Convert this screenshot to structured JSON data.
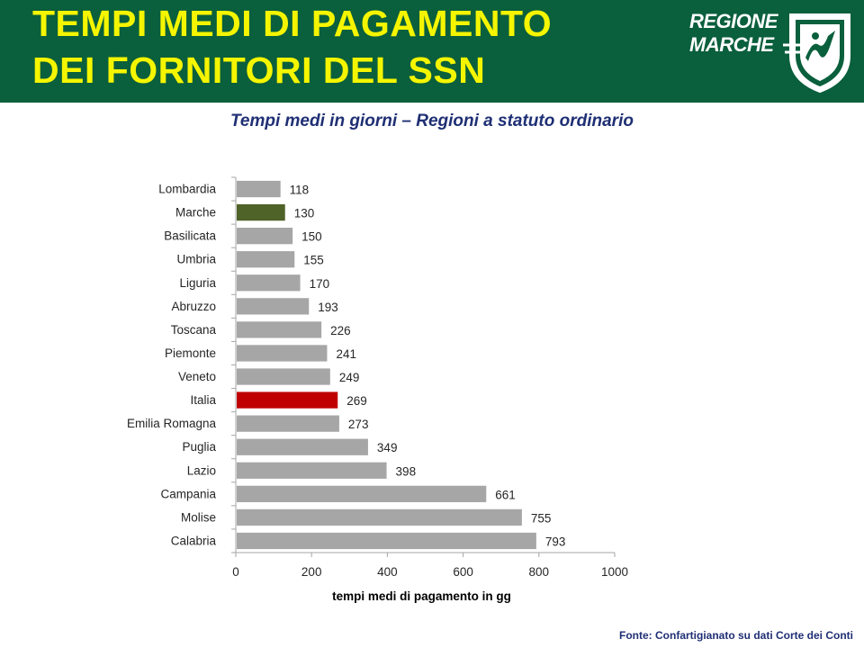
{
  "header": {
    "title_line1": "TEMPI MEDI DI PAGAMENTO",
    "title_line2": "DEI FORNITORI DEL SSN",
    "logo_line1": "REGIONE",
    "logo_line2": "MARCHE"
  },
  "subtitle": "Tempi medi in giorni – Regioni a statuto ordinario",
  "source": "Fonte: Confartigianato su dati Corte dei Conti",
  "colors": {
    "header_bg": "#0a5f3c",
    "title": "#f5f500",
    "default_bar": "#a6a6a6",
    "marche_bar": "#4f6228",
    "italia_bar": "#c00000"
  },
  "chart_data": {
    "type": "bar",
    "orientation": "horizontal",
    "categories": [
      "Lombardia",
      "Marche",
      "Basilicata",
      "Umbria",
      "Liguria",
      "Abruzzo",
      "Toscana",
      "Piemonte",
      "Veneto",
      "Italia",
      "Emilia Romagna",
      "Puglia",
      "Lazio",
      "Campania",
      "Molise",
      "Calabria"
    ],
    "values": [
      118,
      130,
      150,
      155,
      170,
      193,
      226,
      241,
      249,
      269,
      273,
      349,
      398,
      661,
      755,
      793
    ],
    "bar_colors": [
      "#a6a6a6",
      "#4f6228",
      "#a6a6a6",
      "#a6a6a6",
      "#a6a6a6",
      "#a6a6a6",
      "#a6a6a6",
      "#a6a6a6",
      "#a6a6a6",
      "#c00000",
      "#a6a6a6",
      "#a6a6a6",
      "#a6a6a6",
      "#a6a6a6",
      "#a6a6a6",
      "#a6a6a6"
    ],
    "xlabel": "tempi medi di pagamento in gg",
    "ylabel": "",
    "xlim": [
      0,
      1000
    ],
    "xticks": [
      0,
      200,
      400,
      600,
      800,
      1000
    ],
    "grid": false,
    "legend": "none"
  }
}
